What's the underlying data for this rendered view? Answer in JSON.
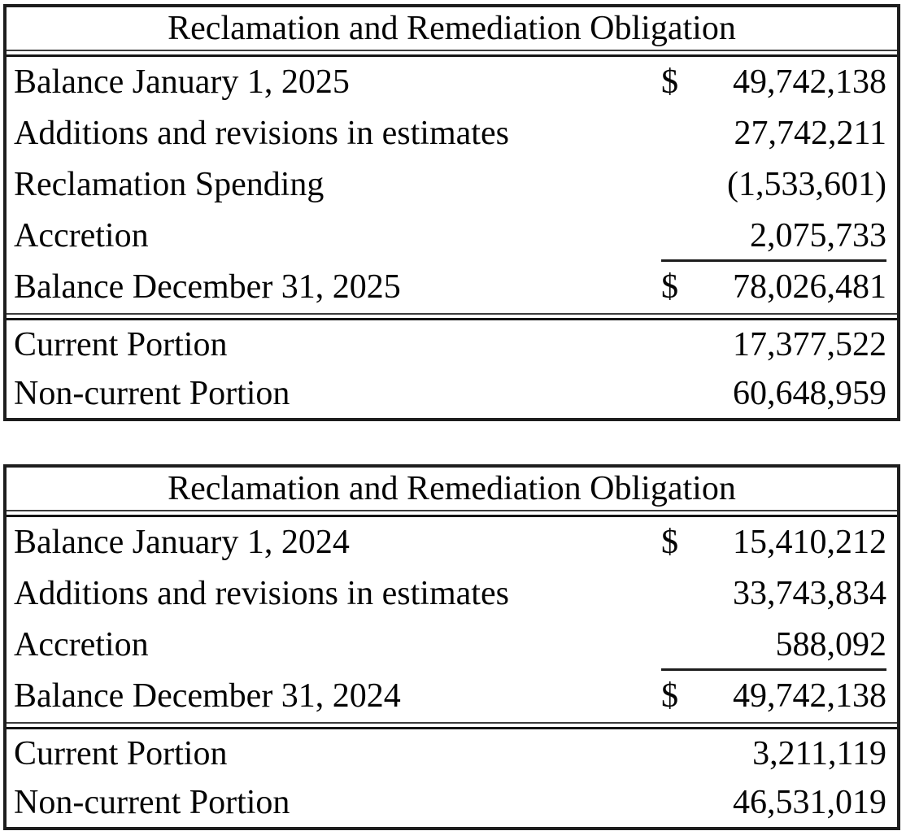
{
  "colors": {
    "background": "#ffffff",
    "text": "#050505",
    "outer_border": "#1d1d1d",
    "thin_rule": "#3c3c3c",
    "thick_rule": "#141414"
  },
  "tables": [
    {
      "title": "Reclamation and Remediation Obligation",
      "body_rows": [
        {
          "label": "Balance January 1, 2025",
          "currency": "$",
          "amount": "49,742,138"
        },
        {
          "label": "Additions and revisions in estimates",
          "currency": "",
          "amount": "27,742,211"
        },
        {
          "label": "Reclamation Spending",
          "currency": "",
          "amount": "(1,533,601)"
        },
        {
          "label": "Accretion",
          "currency": "",
          "amount": "2,075,733"
        },
        {
          "label": "Balance December 31, 2025",
          "currency": "$",
          "amount": "78,026,481"
        }
      ],
      "footer_rows": [
        {
          "label": "Current Portion",
          "currency": "",
          "amount": "17,377,522"
        },
        {
          "label": "Non-current Portion",
          "currency": "",
          "amount": "60,648,959"
        }
      ]
    },
    {
      "title": "Reclamation and Remediation Obligation",
      "body_rows": [
        {
          "label": "Balance January 1, 2024",
          "currency": "$",
          "amount": "15,410,212"
        },
        {
          "label": "Additions and revisions in estimates",
          "currency": "",
          "amount": "33,743,834"
        },
        {
          "label": "Accretion",
          "currency": "",
          "amount": "588,092"
        },
        {
          "label": "Balance December 31, 2024",
          "currency": "$",
          "amount": "49,742,138"
        }
      ],
      "footer_rows": [
        {
          "label": "Current Portion",
          "currency": "",
          "amount": "3,211,119"
        },
        {
          "label": "Non-current Portion",
          "currency": "",
          "amount": "46,531,019"
        }
      ]
    }
  ]
}
